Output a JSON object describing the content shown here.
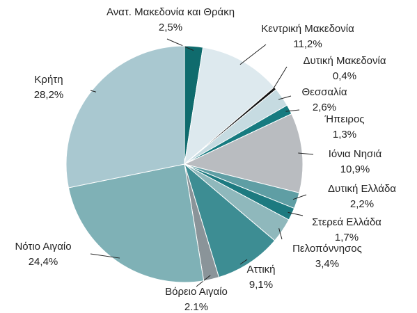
{
  "chart_data": {
    "type": "pie",
    "categories": [
      "Ανατ. Μακεδονία και Θράκη",
      "Κεντρική Μακεδονία",
      "Δυτική Μακεδονία",
      "Θεσσαλία",
      "Ήπειρος",
      "Ιόνια Νησιά",
      "Δυτική Ελλάδα",
      "Στερεά Ελλάδα",
      "Πελοπόννησος",
      "Αττική",
      "Βόρειο Αιγαίο",
      "Νότιο Αιγαίο",
      "Κρήτη"
    ],
    "values": [
      2.5,
      11.2,
      0.4,
      2.6,
      1.3,
      10.9,
      2.2,
      1.7,
      3.4,
      9.1,
      2.1,
      24.4,
      28.2
    ],
    "value_labels": [
      "2,5%",
      "11,2%",
      "0,4%",
      "2,6%",
      "1,3%",
      "10,9%",
      "2,2%",
      "1,7%",
      "3,4%",
      "9,1%",
      "2.1%",
      "24,4%",
      "28,2%"
    ],
    "colors": [
      "#0f6b6d",
      "#dde9ee",
      "#111111",
      "#c6dbe1",
      "#177b80",
      "#b9bcc0",
      "#5f9ea4",
      "#1d7a80",
      "#8fb8bc",
      "#3d8d93",
      "#8a9499",
      "#7fb1b6",
      "#a9c8d0"
    ]
  }
}
